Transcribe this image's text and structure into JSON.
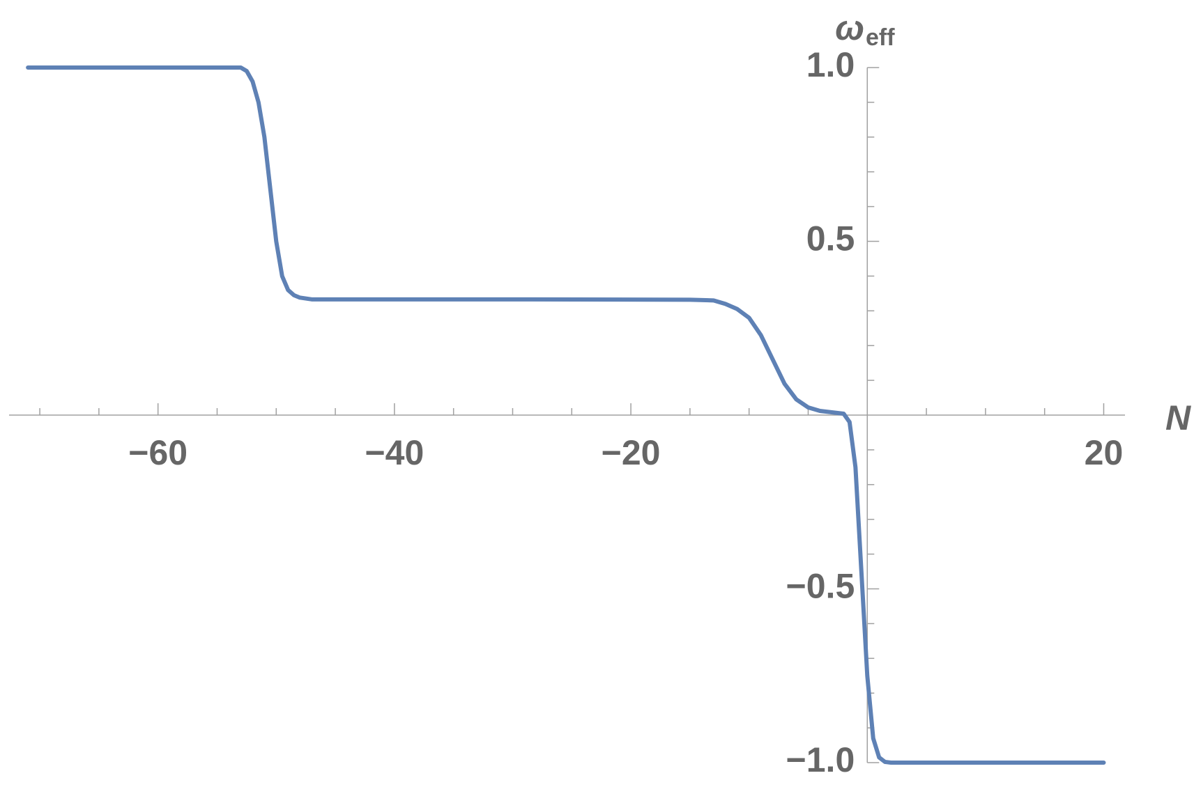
{
  "chart_data": {
    "type": "line",
    "xlabel": "N",
    "ylabel": {
      "symbol": "ω",
      "subscript": "eff"
    },
    "x": [
      -71,
      -53,
      -52.5,
      -52,
      -51.5,
      -51,
      -50.5,
      -50,
      -49.5,
      -49,
      -48.5,
      -48,
      -47,
      -30,
      -15,
      -13,
      -12,
      -11,
      -10,
      -9,
      -8,
      -7,
      -6,
      -5,
      -4,
      -3,
      -2,
      -1.5,
      -1,
      -0.5,
      0,
      0.5,
      1,
      1.5,
      2,
      20
    ],
    "series": [
      {
        "name": "w_eff",
        "color": "#5e81b5",
        "values": [
          1.0,
          1.0,
          0.99,
          0.96,
          0.9,
          0.8,
          0.65,
          0.5,
          0.4,
          0.36,
          0.345,
          0.338,
          0.333,
          0.333,
          0.332,
          0.33,
          0.32,
          0.305,
          0.28,
          0.23,
          0.16,
          0.09,
          0.045,
          0.022,
          0.012,
          0.008,
          0.004,
          -0.02,
          -0.15,
          -0.45,
          -0.75,
          -0.93,
          -0.985,
          -0.998,
          -1.0,
          -1.0
        ]
      }
    ],
    "xlim": [
      -72.6,
      21.8
    ],
    "ylim": [
      -1.0,
      1.0
    ],
    "xticks": [
      {
        "value": -60,
        "label": "−60"
      },
      {
        "value": -40,
        "label": "−40"
      },
      {
        "value": -20,
        "label": "−20"
      },
      20
    ],
    "yticks": [
      {
        "value": 1.0,
        "label": "1.0"
      },
      0.5,
      {
        "value": -0.5,
        "label": "−0.5"
      },
      {
        "value": -1.0,
        "label": "−1.0"
      }
    ],
    "xminorticks": [
      -70,
      -65,
      -55,
      -50,
      -45,
      -35,
      -30,
      -25,
      -15,
      -10,
      -5,
      5,
      10,
      15
    ],
    "yminorticks": [
      0.9,
      0.8,
      0.7,
      0.6,
      0.4,
      0.3,
      0.2,
      0.1,
      -0.1,
      -0.2,
      -0.3,
      -0.4,
      -0.6,
      -0.7,
      -0.8,
      -0.9
    ]
  }
}
